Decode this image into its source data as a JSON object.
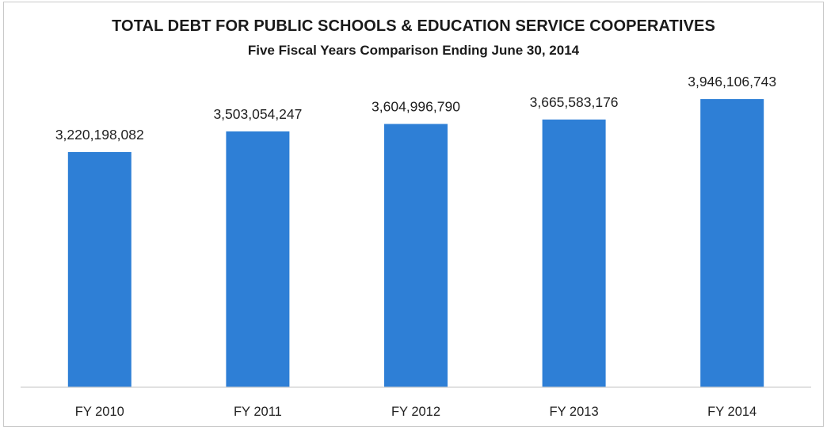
{
  "chart_data": {
    "type": "bar",
    "title": "TOTAL DEBT FOR PUBLIC SCHOOLS & EDUCATION SERVICE COOPERATIVES",
    "subtitle": "Five Fiscal Years Comparison Ending June 30, 2014",
    "xlabel": "",
    "ylabel": "",
    "categories": [
      "FY 2010",
      "FY 2011",
      "FY 2012",
      "FY 2013",
      "FY 2014"
    ],
    "values": [
      3220198082,
      3503054247,
      3604996790,
      3665583176,
      3946106743
    ],
    "value_labels": [
      "3,220,198,082",
      "3,503,054,247",
      "3,604,996,790",
      "3,665,583,176",
      "3,946,106,743"
    ],
    "ylim": [
      0,
      4500000000
    ],
    "grid": false,
    "legend": "none",
    "colors": {
      "bar": "#2E7FD6",
      "axis": "#cfcfcf",
      "frame": "#c9c9c9"
    }
  }
}
